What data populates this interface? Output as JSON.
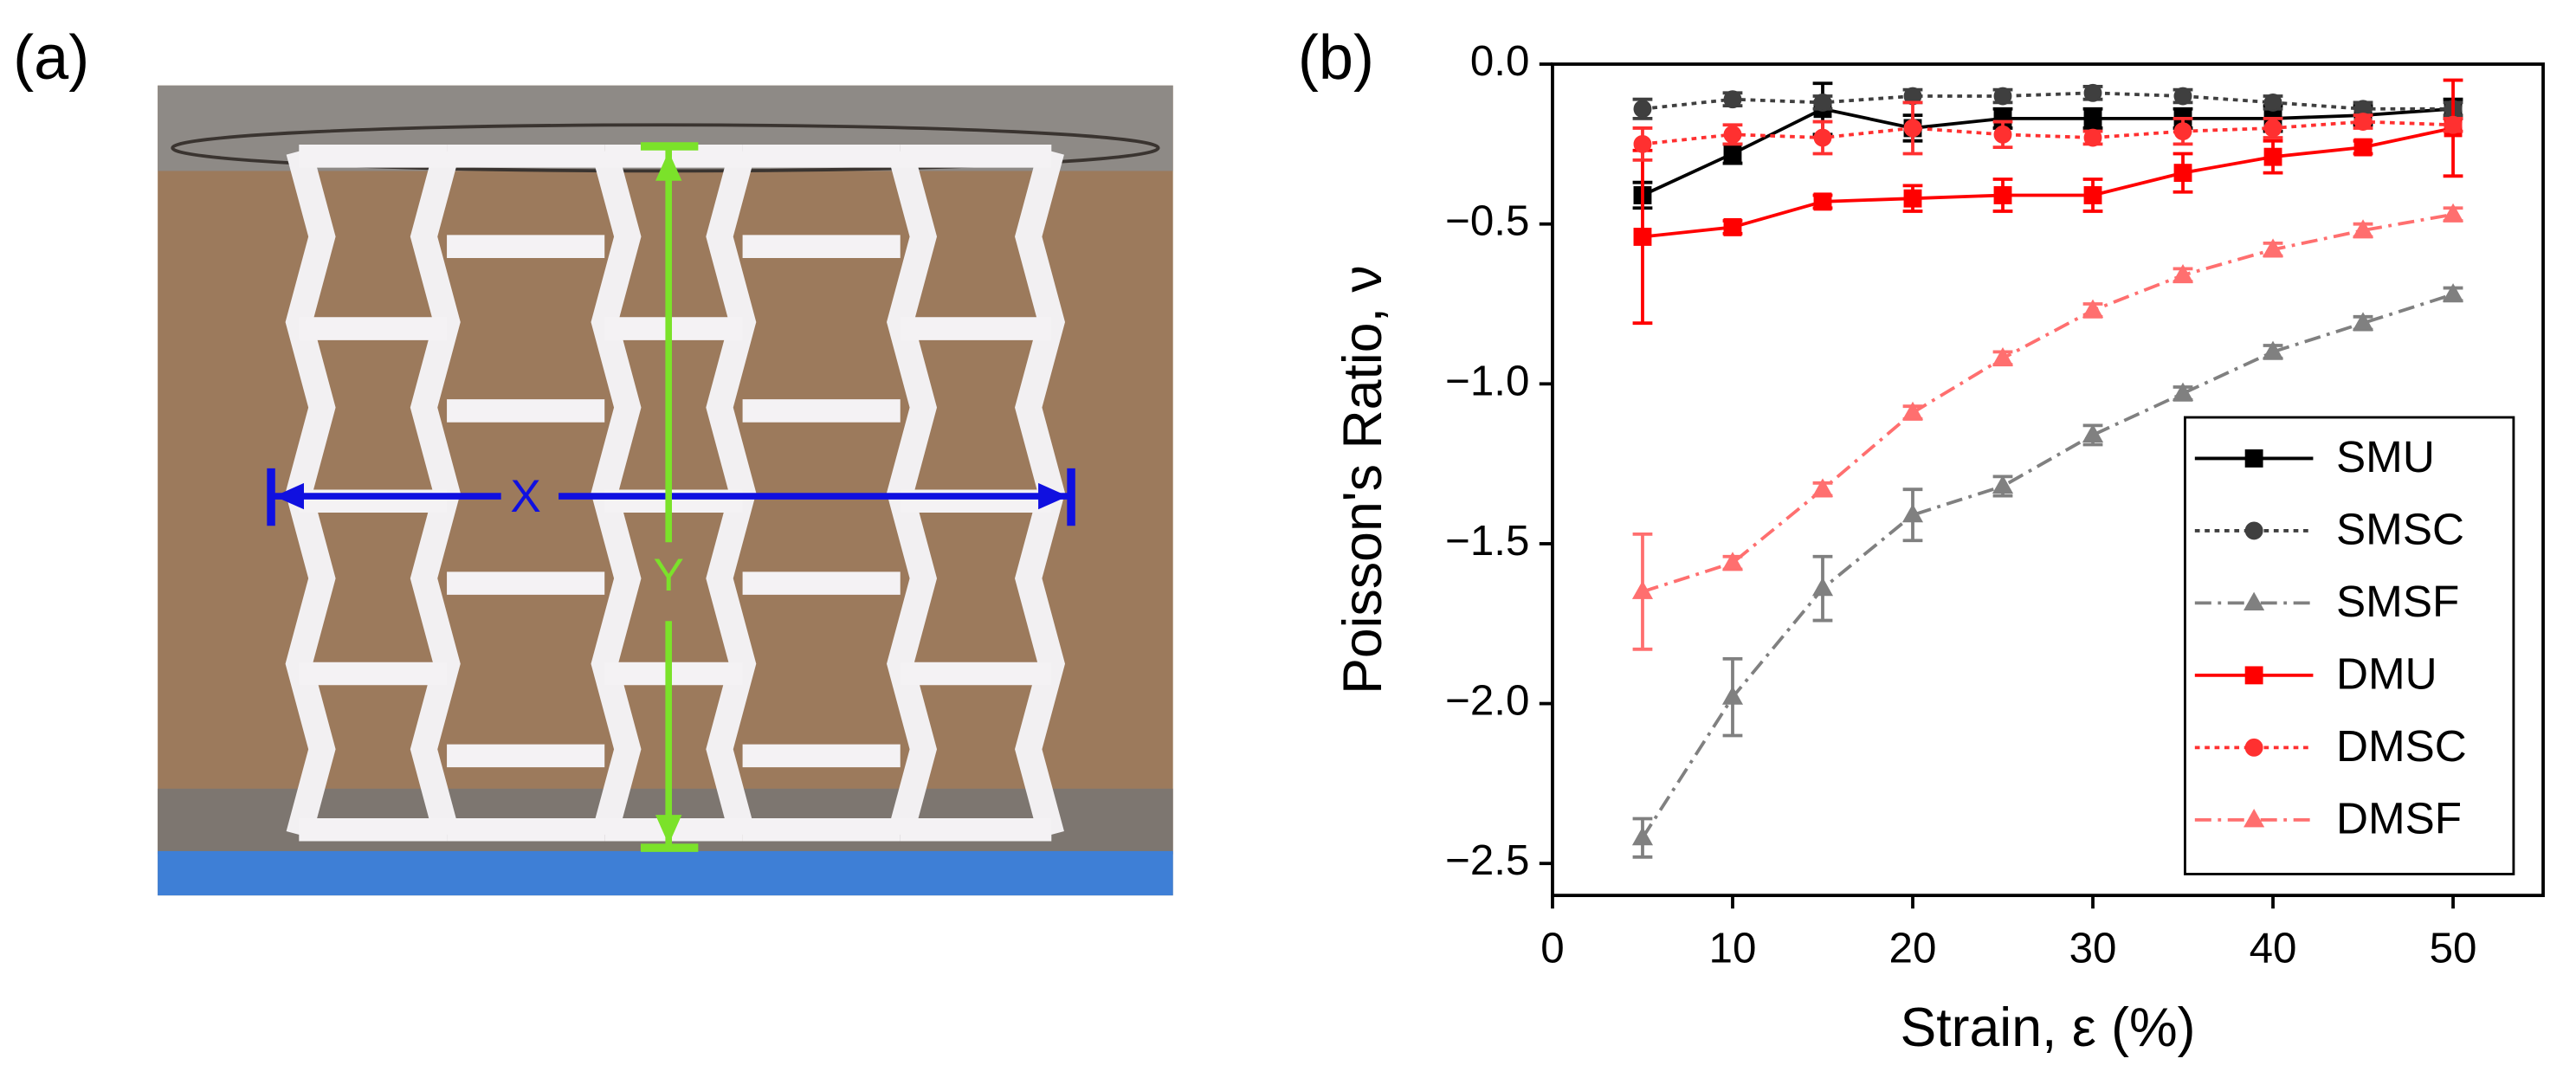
{
  "panel_labels": {
    "a": "(a)",
    "b": "(b)"
  },
  "photo": {
    "x_label": "X",
    "y_label": "Y"
  },
  "chart_data": {
    "type": "line",
    "x_label": "Strain, ε  (%)",
    "y_label": "Poisson's Ratio, ν",
    "x": [
      5,
      10,
      15,
      20,
      25,
      30,
      35,
      40,
      45,
      50
    ],
    "xlim": [
      0,
      55
    ],
    "xticks": [
      0,
      10,
      20,
      30,
      40,
      50
    ],
    "ylim": [
      -2.6,
      0
    ],
    "yticks": [
      {
        "value": 0,
        "label": "0.0"
      },
      {
        "value": -0.5,
        "label": "−0.5"
      },
      {
        "value": -1,
        "label": "−1.0"
      },
      {
        "value": -1.5,
        "label": "−1.5"
      },
      {
        "value": -2,
        "label": "−2.0"
      },
      {
        "value": -2.5,
        "label": "−2.5"
      }
    ],
    "legend": "lower right",
    "series": [
      {
        "name": "SMU",
        "color": "#000000",
        "line_style": "solid",
        "marker": "square",
        "values": [
          -0.41,
          -0.28,
          -0.14,
          -0.2,
          -0.17,
          -0.17,
          -0.17,
          -0.17,
          -0.16,
          -0.14
        ],
        "errors": [
          0.04,
          0.03,
          0.08,
          0.04,
          0.03,
          0.03,
          0.03,
          0.04,
          0.03,
          0.03
        ]
      },
      {
        "name": "SMSC",
        "color": "#3f3f3f",
        "line_style": "dotted",
        "marker": "circle",
        "values": [
          -0.14,
          -0.11,
          -0.12,
          -0.1,
          -0.1,
          -0.09,
          -0.1,
          -0.12,
          -0.14,
          -0.14
        ],
        "errors": [
          0.03,
          0.02,
          0.02,
          0.02,
          0.02,
          0.02,
          0.02,
          0.02,
          0.02,
          0.02
        ]
      },
      {
        "name": "SMSF",
        "color": "#808080",
        "line_style": "dashdot",
        "marker": "triangle",
        "values": [
          -2.42,
          -1.98,
          -1.64,
          -1.41,
          -1.32,
          -1.16,
          -1.03,
          -0.9,
          -0.81,
          -0.72
        ],
        "errors": [
          0.06,
          0.12,
          0.1,
          0.08,
          0.03,
          0.03,
          0.02,
          0.02,
          0.02,
          0.02
        ]
      },
      {
        "name": "DMU",
        "color": "#ff0000",
        "line_style": "solid",
        "marker": "square",
        "values": [
          -0.54,
          -0.51,
          -0.43,
          -0.42,
          -0.41,
          -0.41,
          -0.34,
          -0.29,
          -0.26,
          -0.2
        ],
        "errors": [
          0.27,
          0.02,
          0.02,
          0.04,
          0.05,
          0.05,
          0.06,
          0.05,
          0.02,
          0.15
        ]
      },
      {
        "name": "DMSC",
        "color": "#ff3030",
        "line_style": "dotted",
        "marker": "circle",
        "values": [
          -0.25,
          -0.22,
          -0.23,
          -0.2,
          -0.22,
          -0.23,
          -0.21,
          -0.2,
          -0.18,
          -0.19
        ],
        "errors": [
          0.05,
          0.03,
          0.05,
          0.08,
          0.04,
          0.02,
          0.04,
          0.03,
          0.02,
          0.02
        ]
      },
      {
        "name": "DMSF",
        "color": "#ff6f6f",
        "line_style": "dashdot",
        "marker": "triangle",
        "values": [
          -1.65,
          -1.56,
          -1.33,
          -1.09,
          -0.92,
          -0.77,
          -0.66,
          -0.58,
          -0.52,
          -0.47
        ],
        "errors": [
          0.18,
          0.02,
          0.02,
          0.02,
          0.02,
          0.02,
          0.02,
          0.02,
          0.02,
          0.02
        ]
      }
    ]
  }
}
